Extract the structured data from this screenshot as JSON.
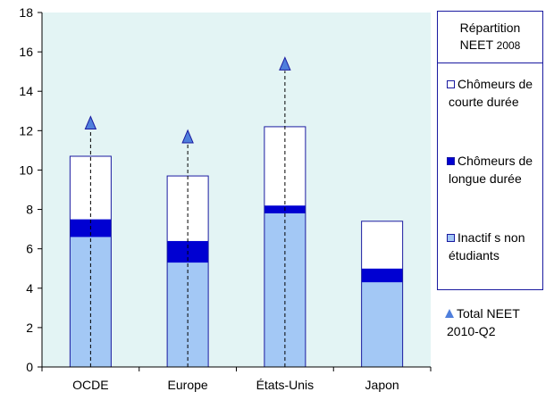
{
  "chart_data": {
    "type": "bar",
    "stacked": true,
    "categories": [
      "OCDE",
      "Europe",
      "États-Unis",
      "Japon"
    ],
    "series": [
      {
        "name": "Inactifs non étudiants",
        "values": [
          6.6,
          5.3,
          7.8,
          4.3
        ],
        "color": "#a3c8f5"
      },
      {
        "name": "Chômeurs de longue durée",
        "values": [
          0.9,
          1.1,
          0.4,
          0.7
        ],
        "color": "#0000d2"
      },
      {
        "name": "Chômeurs de courte durée",
        "values": [
          3.2,
          3.3,
          4.0,
          2.4
        ],
        "color": "#ffffff"
      }
    ],
    "markers": {
      "name": "Total NEET 2010-Q2",
      "values": [
        12.4,
        11.7,
        15.4,
        null
      ],
      "color": "#4f7fdc"
    },
    "title": "",
    "xlabel": "",
    "ylabel": "",
    "ylim": [
      0,
      18
    ],
    "yticks": [
      0,
      2,
      4,
      6,
      8,
      10,
      12,
      14,
      16,
      18
    ],
    "grid": false,
    "background_color": "#e3f4f4",
    "legend": {
      "title_line1": "Répartition",
      "title_line2": "NEET",
      "title_year": "2008",
      "placement": "right",
      "items": [
        {
          "line1": "Chômeurs de",
          "line2": "courte durée",
          "color": "#ffffff"
        },
        {
          "line1": "Chômeurs de",
          "line2": "longue durée",
          "color": "#0000d2"
        },
        {
          "line1": "Inactif s non",
          "line2": "étudiants",
          "color": "#a3c8f5"
        }
      ],
      "marker_item": {
        "line1": "Total NEET",
        "line2": "2010-Q2"
      }
    }
  }
}
